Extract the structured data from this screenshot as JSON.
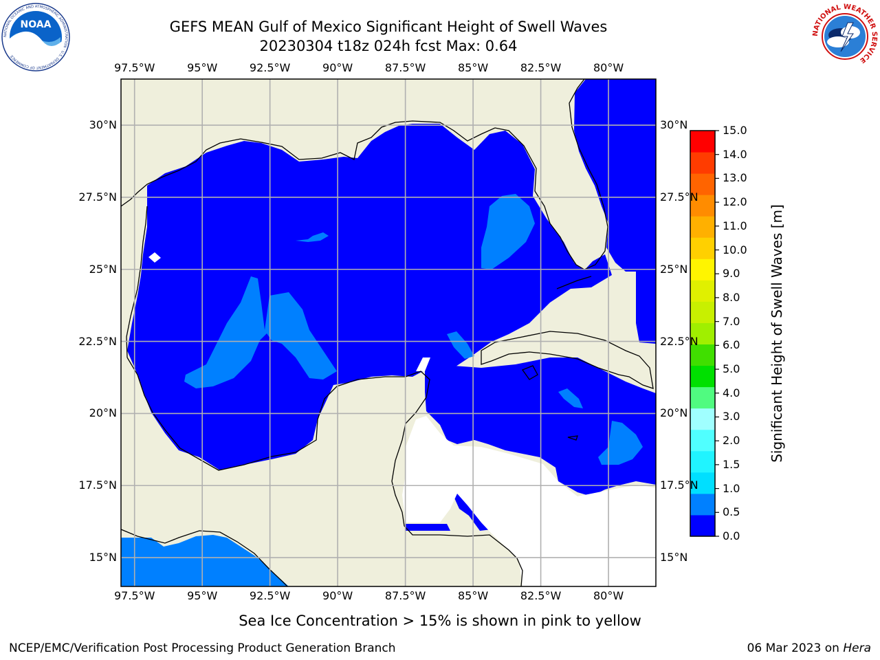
{
  "title": {
    "line1": "GEFS MEAN Gulf of Mexico Significant Height of Swell Waves",
    "line2": "20230304 t18z 024h fcst   Max: 0.64"
  },
  "map": {
    "lon_ticks": [
      "97.5°W",
      "95°W",
      "92.5°W",
      "90°W",
      "87.5°W",
      "85°W",
      "82.5°W",
      "80°W"
    ],
    "lat_ticks": [
      "30°N",
      "27.5°N",
      "25°N",
      "22.5°N",
      "20°N",
      "17.5°N",
      "15°N"
    ],
    "lon_values": [
      -97.5,
      -95,
      -92.5,
      -90,
      -87.5,
      -85,
      -82.5,
      -80
    ],
    "lat_values": [
      30,
      27.5,
      25,
      22.5,
      20,
      17.5,
      15
    ],
    "extent": {
      "lon_min": -98,
      "lon_max": -78.25,
      "lat_min": 14,
      "lat_max": 31.6
    },
    "colors": {
      "land": "#efefdc",
      "grid": "#b0b0b0",
      "swell_0_0.5": "#0000ff",
      "swell_0.5_1.0": "#0080ff",
      "no_data": "#ffffff"
    }
  },
  "colorbar": {
    "label": "Significant Height of Swell Waves [m]",
    "ticks": [
      "0.0",
      "0.5",
      "1.0",
      "1.5",
      "2.0",
      "3.0",
      "4.0",
      "5.0",
      "6.0",
      "7.0",
      "8.0",
      "9.0",
      "10.0",
      "11.0",
      "12.0",
      "13.0",
      "14.0",
      "15.0"
    ],
    "colors": [
      "#0000ff",
      "#0080ff",
      "#00dfff",
      "#20f4ff",
      "#50ffff",
      "#a0ffff",
      "#50fb80",
      "#00e000",
      "#40df00",
      "#a0ef00",
      "#c8f000",
      "#e0f000",
      "#fff500",
      "#ffd000",
      "#ffb000",
      "#ff8c00",
      "#ff6400",
      "#ff3c00",
      "#ff0000"
    ]
  },
  "note": "Sea Ice Concentration > 15% is shown in pink to yellow",
  "footer": {
    "left": "NCEP/EMC/Verification Post Processing Product Generation Branch",
    "right_date": "06 Mar 2023 on ",
    "right_host": "Hera"
  },
  "logos": {
    "noaa": {
      "text": "NOAA",
      "ring_text": "NATIONAL OCEANIC AND ATMOSPHERIC ADMINISTRATION · U.S. DEPARTMENT OF COMMERCE"
    },
    "nws": {
      "ring_text": "NATIONAL WEATHER SERVICE"
    }
  }
}
